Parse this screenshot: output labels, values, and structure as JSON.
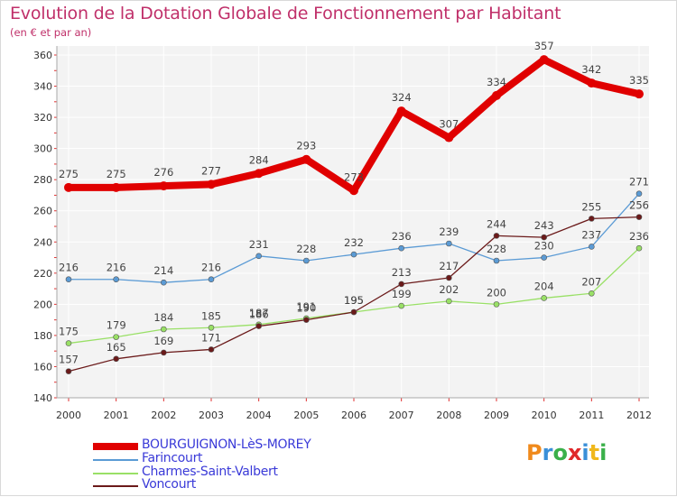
{
  "chart_data": {
    "type": "line",
    "title": "Evolution de la Dotation Globale de Fonctionnement par Habitant",
    "subtitle": "(en € et par an)",
    "xlabel": "",
    "ylabel": "",
    "ylim": [
      140,
      360
    ],
    "yticks": [
      140,
      160,
      180,
      200,
      220,
      240,
      260,
      280,
      300,
      320,
      340,
      360
    ],
    "x": [
      2000,
      2001,
      2002,
      2003,
      2004,
      2005,
      2006,
      2007,
      2008,
      2009,
      2010,
      2011,
      2012
    ],
    "series": [
      {
        "name": "BOURGUIGNON-LèS-MOREY",
        "color": "#e00000",
        "values": [
          275,
          275,
          276,
          277,
          284,
          293,
          273,
          324,
          307,
          334,
          357,
          342,
          335
        ]
      },
      {
        "name": "Farincourt",
        "color": "#5b9bd5",
        "values": [
          216,
          216,
          214,
          216,
          231,
          228,
          232,
          236,
          239,
          228,
          230,
          237,
          271
        ]
      },
      {
        "name": "Charmes-Saint-Valbert",
        "color": "#99e066",
        "values": [
          175,
          179,
          184,
          185,
          187,
          191,
          195,
          199,
          202,
          200,
          204,
          207,
          236
        ]
      },
      {
        "name": "Voncourt",
        "color": "#6b1a1a",
        "values": [
          157,
          165,
          169,
          171,
          186,
          190,
          195,
          213,
          217,
          244,
          243,
          255,
          256
        ]
      }
    ],
    "grid": true,
    "legend": "bottom-left"
  },
  "logo": {
    "letters": [
      "P",
      "r",
      "o",
      "x",
      "i",
      "t",
      "i"
    ],
    "colors": [
      "#f08a1c",
      "#3a8fd8",
      "#3ab04a",
      "#e0282a",
      "#3a8fd8",
      "#f0b81c",
      "#3ab04a"
    ]
  }
}
